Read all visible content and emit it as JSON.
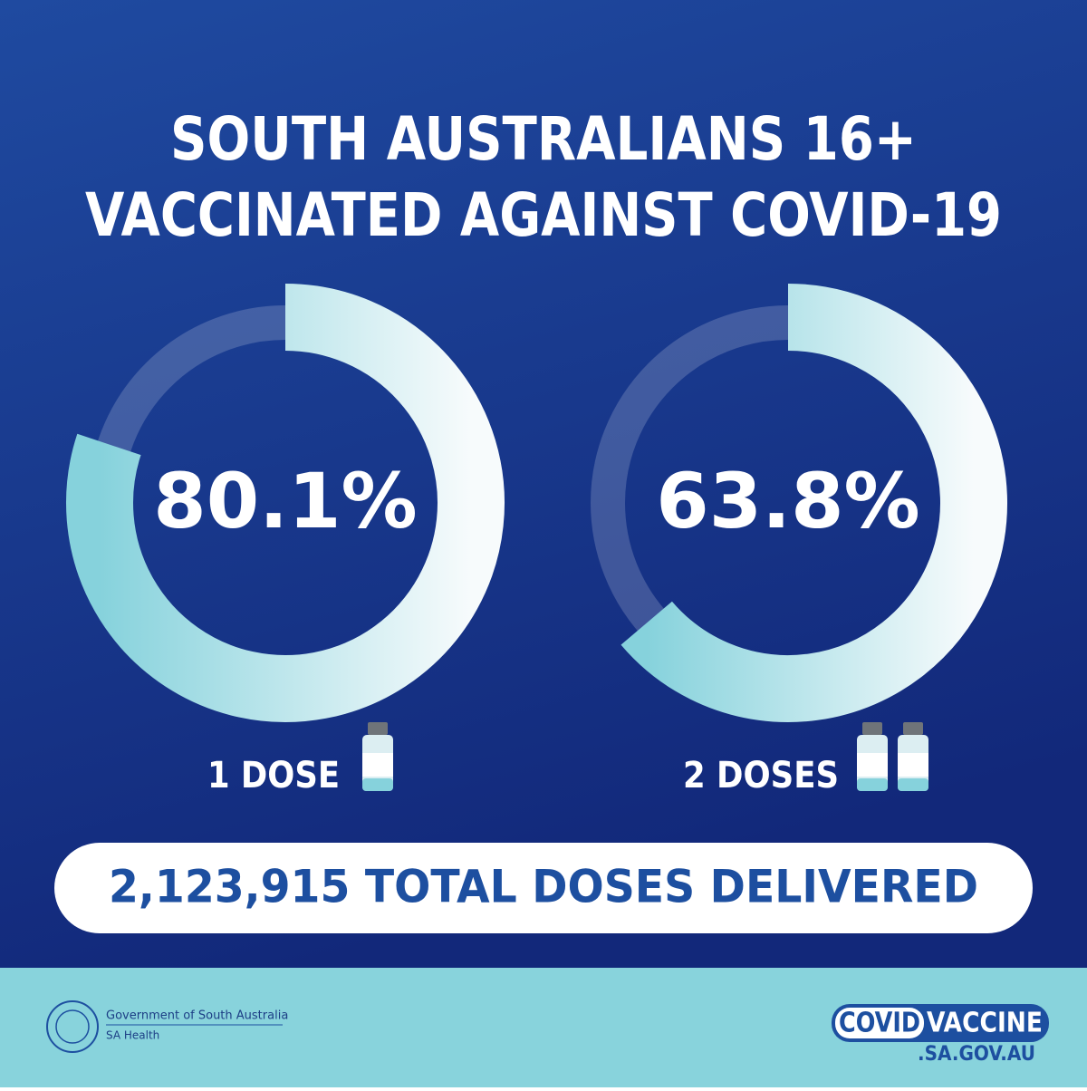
{
  "title_lines": [
    "SOUTH AUSTRALIANS 16+",
    "VACCINATED AGAINST COVID-19"
  ],
  "chart_data": [
    {
      "type": "donut",
      "categories": [
        "1 DOSE"
      ],
      "values": [
        80.1
      ],
      "value_labels": [
        "80.1%"
      ],
      "ylim": [
        0,
        100
      ]
    },
    {
      "type": "donut",
      "categories": [
        "2 DOSES"
      ],
      "values": [
        63.8
      ],
      "value_labels": [
        "63.8%"
      ],
      "ylim": [
        0,
        100
      ]
    }
  ],
  "total_doses": "2,123,915 TOTAL DOSES DELIVERED",
  "footer": {
    "government": "Government of South Australia",
    "department": "SA Health",
    "brand_covid": "COVID",
    "brand_vaccine": "VACCINE",
    "brand_domain": ".SA.GOV.AU"
  }
}
